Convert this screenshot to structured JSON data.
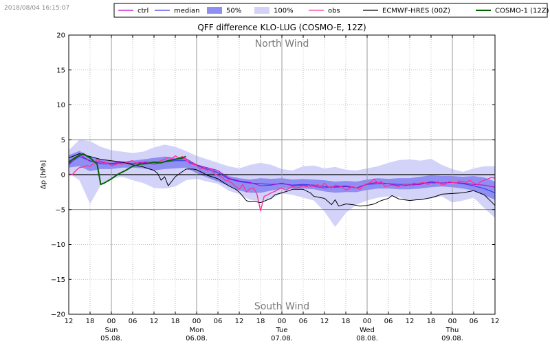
{
  "timestamp": "2018/08/04 16:15:07",
  "chart_data": {
    "type": "line",
    "title": "QFF difference KLO-LUG (COSMO-E, 12Z)",
    "ylabel": "Δp [hPa]",
    "xlabel": "",
    "ylim": [
      -20,
      20
    ],
    "xlim": [
      0,
      120
    ],
    "yticks": [
      -20,
      -15,
      -10,
      -5,
      0,
      5,
      10,
      15,
      20
    ],
    "hour_ticks": [
      {
        "x": 0,
        "label": "12"
      },
      {
        "x": 6,
        "label": "18"
      },
      {
        "x": 12,
        "label": "00"
      },
      {
        "x": 18,
        "label": "06"
      },
      {
        "x": 24,
        "label": "12"
      },
      {
        "x": 30,
        "label": "18"
      },
      {
        "x": 36,
        "label": "00"
      },
      {
        "x": 42,
        "label": "06"
      },
      {
        "x": 48,
        "label": "12"
      },
      {
        "x": 54,
        "label": "18"
      },
      {
        "x": 60,
        "label": "00"
      },
      {
        "x": 66,
        "label": "06"
      },
      {
        "x": 72,
        "label": "12"
      },
      {
        "x": 78,
        "label": "18"
      },
      {
        "x": 84,
        "label": "00"
      },
      {
        "x": 90,
        "label": "06"
      },
      {
        "x": 96,
        "label": "12"
      },
      {
        "x": 102,
        "label": "18"
      },
      {
        "x": 108,
        "label": "00"
      },
      {
        "x": 114,
        "label": "06"
      },
      {
        "x": 120,
        "label": "12"
      }
    ],
    "day_labels": [
      {
        "x": 12,
        "day": "Sun",
        "date": "05.08."
      },
      {
        "x": 36,
        "day": "Mon",
        "date": "06.08."
      },
      {
        "x": 60,
        "day": "Tue",
        "date": "07.08."
      },
      {
        "x": 84,
        "day": "Wed",
        "date": "08.08."
      },
      {
        "x": 108,
        "day": "Thu",
        "date": "09.08."
      }
    ],
    "reference_lines": [
      5,
      0,
      -5
    ],
    "annotations": [
      {
        "text": "North Wind",
        "x": 60,
        "y": 18.8
      },
      {
        "text": "South Wind",
        "x": 60,
        "y": -18.8
      }
    ],
    "legend": [
      {
        "label": "ctrl",
        "kind": "line",
        "color": "#c000c0"
      },
      {
        "label": "median",
        "kind": "line",
        "color": "#3a3af0"
      },
      {
        "label": "50%",
        "kind": "band",
        "color": "#8f8ff3"
      },
      {
        "label": "100%",
        "kind": "band",
        "color": "#d3d3fa"
      },
      {
        "label": "obs",
        "kind": "line",
        "color": "#ff3399"
      },
      {
        "label": "ECMWF-HRES (00Z)",
        "kind": "line",
        "color": "#000000"
      },
      {
        "label": "COSMO-1 (12Z)",
        "kind": "line",
        "color": "#006400"
      }
    ],
    "bands": [
      {
        "name": "100%",
        "color": "#d3d3fa",
        "x": [
          0,
          3,
          6,
          9,
          12,
          15,
          18,
          21,
          24,
          27,
          30,
          33,
          36,
          39,
          42,
          45,
          48,
          51,
          54,
          57,
          60,
          63,
          66,
          69,
          72,
          75,
          78,
          81,
          84,
          87,
          90,
          93,
          96,
          99,
          102,
          105,
          108,
          111,
          114,
          117,
          120
        ],
        "upper": [
          3.5,
          5.0,
          4.8,
          4.0,
          3.5,
          3.3,
          3.1,
          3.3,
          3.9,
          4.3,
          4.0,
          3.4,
          2.7,
          2.2,
          1.7,
          1.2,
          0.9,
          1.4,
          1.7,
          1.4,
          0.8,
          0.6,
          1.2,
          1.3,
          0.9,
          1.1,
          0.7,
          0.6,
          0.9,
          1.2,
          1.7,
          2.1,
          2.2,
          2.0,
          2.3,
          1.4,
          0.8,
          0.4,
          0.9,
          1.2,
          1.2
        ],
        "lower": [
          0.2,
          -0.8,
          -4.2,
          -1.5,
          -0.6,
          -0.3,
          -0.8,
          -1.2,
          -1.9,
          -2.0,
          -1.7,
          -0.8,
          -0.6,
          -1.0,
          -1.3,
          -2.3,
          -2.8,
          -3.6,
          -3.8,
          -3.4,
          -2.7,
          -2.9,
          -3.3,
          -3.7,
          -5.3,
          -7.5,
          -5.5,
          -4.3,
          -3.7,
          -3.3,
          -3.1,
          -3.2,
          -3.8,
          -3.5,
          -3.4,
          -3.1,
          -4.0,
          -3.7,
          -3.3,
          -4.8,
          -6.2
        ]
      },
      {
        "name": "50%",
        "color": "#8f8ff3",
        "x": [
          0,
          3,
          6,
          9,
          12,
          15,
          18,
          21,
          24,
          27,
          30,
          33,
          36,
          39,
          42,
          45,
          48,
          51,
          54,
          57,
          60,
          63,
          66,
          69,
          72,
          75,
          78,
          81,
          84,
          87,
          90,
          93,
          96,
          99,
          102,
          105,
          108,
          111,
          114,
          117,
          120
        ],
        "upper": [
          2.8,
          3.4,
          2.6,
          2.2,
          2.0,
          1.9,
          2.0,
          2.2,
          2.4,
          2.6,
          2.4,
          2.2,
          1.5,
          1.0,
          0.5,
          -0.2,
          -0.5,
          -0.7,
          -0.5,
          -0.6,
          -0.5,
          -0.7,
          -0.6,
          -0.7,
          -0.8,
          -1.0,
          -0.9,
          -1.0,
          -0.7,
          -0.5,
          -0.6,
          -0.5,
          -0.5,
          -0.3,
          -0.1,
          -0.2,
          -0.2,
          -0.3,
          -0.2,
          -0.4,
          -1.0
        ],
        "lower": [
          1.0,
          1.2,
          0.5,
          0.8,
          0.8,
          1.0,
          1.0,
          0.9,
          0.6,
          0.8,
          0.9,
          1.0,
          0.2,
          -0.4,
          -1.0,
          -1.6,
          -2.3,
          -2.6,
          -2.6,
          -2.3,
          -2.0,
          -2.0,
          -2.0,
          -2.1,
          -2.4,
          -2.6,
          -2.5,
          -2.5,
          -2.2,
          -2.0,
          -2.0,
          -2.1,
          -2.1,
          -2.0,
          -1.8,
          -1.7,
          -1.8,
          -2.0,
          -2.3,
          -3.0,
          -3.6
        ]
      }
    ],
    "series": [
      {
        "name": "median",
        "color": "#3a3af0",
        "width": 1.2,
        "x": [
          0,
          3,
          6,
          9,
          12,
          15,
          18,
          21,
          24,
          27,
          30,
          33,
          36,
          39,
          42,
          45,
          48,
          51,
          54,
          57,
          60,
          63,
          66,
          69,
          72,
          75,
          78,
          81,
          84,
          87,
          90,
          93,
          96,
          99,
          102,
          105,
          108,
          111,
          114,
          117,
          120
        ],
        "y": [
          1.6,
          2.6,
          2.0,
          1.6,
          1.5,
          1.7,
          1.6,
          1.7,
          1.6,
          1.8,
          2.0,
          2.0,
          1.3,
          0.8,
          0.3,
          -0.6,
          -1.0,
          -1.2,
          -1.3,
          -1.4,
          -1.3,
          -1.5,
          -1.4,
          -1.5,
          -1.7,
          -1.8,
          -1.7,
          -1.9,
          -1.4,
          -1.3,
          -1.3,
          -1.4,
          -1.4,
          -1.3,
          -1.1,
          -1.2,
          -1.1,
          -1.3,
          -1.6,
          -2.0,
          -2.6
        ]
      },
      {
        "name": "ctrl",
        "color": "#c000c0",
        "width": 1.0,
        "x": [
          0,
          3,
          6,
          9,
          12,
          15,
          18,
          21,
          24,
          27,
          30,
          33,
          36,
          39,
          42,
          45,
          48,
          51,
          54,
          57,
          60,
          63,
          66,
          69,
          72,
          75,
          78,
          81,
          84,
          87,
          90,
          93,
          96,
          99,
          102,
          105,
          108,
          111,
          114,
          117,
          120
        ],
        "y": [
          1.4,
          2.9,
          1.9,
          1.8,
          1.6,
          1.8,
          1.6,
          1.8,
          1.5,
          1.8,
          2.2,
          2.3,
          1.4,
          1.0,
          0.6,
          -0.5,
          -0.9,
          -1.1,
          -1.6,
          -1.5,
          -1.2,
          -1.6,
          -1.5,
          -1.7,
          -1.9,
          -1.7,
          -1.6,
          -1.9,
          -1.3,
          -1.1,
          -1.3,
          -1.6,
          -1.5,
          -1.4,
          -1.0,
          -1.2,
          -1.1,
          -1.2,
          -1.4,
          -1.5,
          -1.8
        ]
      },
      {
        "name": "obs",
        "color": "#ff3399",
        "width": 1.4,
        "x": [
          0,
          1,
          2,
          3,
          4,
          5,
          6,
          7,
          8,
          9,
          10,
          11,
          12,
          13,
          14,
          15,
          16,
          17,
          18,
          19,
          20,
          21,
          22,
          23,
          24,
          25,
          26,
          27,
          28,
          29,
          30,
          31,
          32,
          33,
          34,
          35,
          36,
          37,
          38,
          39,
          40,
          41,
          42,
          43,
          44,
          45,
          46,
          47,
          48,
          49,
          50,
          51,
          52,
          53,
          54,
          55,
          56,
          57,
          58,
          59,
          60,
          61,
          62,
          63,
          64,
          65,
          66,
          67,
          68,
          69,
          70,
          71,
          72,
          73,
          74,
          75,
          76,
          77,
          78,
          79,
          80,
          81,
          82,
          83,
          84,
          85,
          86,
          87,
          88,
          89,
          90,
          91,
          92,
          93,
          94,
          95,
          96,
          97,
          98,
          99,
          100,
          101,
          102,
          103,
          104,
          105,
          106,
          107,
          108,
          109,
          110,
          111,
          112,
          113,
          114,
          115,
          116,
          117,
          118,
          119,
          120
        ],
        "y": [
          0.1,
          0.0,
          0.6,
          1.0,
          1.1,
          1.3,
          1.2,
          1.6,
          2.2,
          1.9,
          1.8,
          1.6,
          1.3,
          1.4,
          1.6,
          1.5,
          1.7,
          1.9,
          2.0,
          1.7,
          1.5,
          1.8,
          1.9,
          1.7,
          1.6,
          1.8,
          2.0,
          2.2,
          2.5,
          2.3,
          2.7,
          2.4,
          2.6,
          2.1,
          1.6,
          1.5,
          1.3,
          0.8,
          0.9,
          0.6,
          0.8,
          0.1,
          -0.1,
          -0.3,
          -0.8,
          -0.9,
          -1.2,
          -1.7,
          -2.1,
          -1.4,
          -2.5,
          -2.0,
          -1.9,
          -2.8,
          -5.2,
          -3.1,
          -2.9,
          -2.6,
          -2.4,
          -2.1,
          -1.9,
          -2.2,
          -2.0,
          -1.7,
          -1.9,
          -1.8,
          -1.6,
          -1.7,
          -1.5,
          -1.7,
          -1.4,
          -1.8,
          -1.2,
          -1.7,
          -1.9,
          -1.5,
          -1.6,
          -1.8,
          -2.2,
          -2.0,
          -1.7,
          -1.9,
          -2.1,
          -1.5,
          -1.3,
          -1.1,
          -0.6,
          -1.2,
          -1.0,
          -1.7,
          -1.6,
          -1.5,
          -1.6,
          -1.7,
          -1.5,
          -1.3,
          -1.6,
          -1.2,
          -1.3,
          -1.2,
          -1.1,
          -1.4,
          -1.2,
          -1.3,
          -1.0,
          -1.5,
          -1.4,
          -1.0,
          -1.1,
          -1.2,
          -0.9,
          -1.0,
          -1.1,
          -0.8,
          -1.2,
          -1.4,
          -1.0,
          -0.8,
          -0.6,
          -0.4,
          -0.5
        ]
      },
      {
        "name": "ECMWF-HRES (00Z)",
        "color": "#000000",
        "width": 1.0,
        "x": [
          0,
          3,
          6,
          9,
          12,
          15,
          18,
          21,
          24,
          25,
          26,
          27,
          28,
          30,
          33,
          35,
          36,
          38,
          39,
          41,
          42,
          45,
          47,
          48,
          50,
          51,
          52,
          54,
          56,
          57,
          58,
          60,
          62,
          63,
          66,
          68,
          69,
          72,
          74,
          75,
          76,
          78,
          80,
          82,
          84,
          86,
          88,
          90,
          91,
          93,
          96,
          98,
          99,
          102,
          104,
          105,
          108,
          111,
          114,
          117,
          120
        ],
        "y": [
          2.4,
          3.0,
          2.6,
          2.2,
          2.0,
          1.8,
          1.4,
          1.1,
          0.6,
          0.2,
          -0.8,
          -0.3,
          -1.6,
          -0.3,
          0.8,
          0.8,
          0.7,
          0.2,
          -0.1,
          -0.4,
          -0.6,
          -1.6,
          -2.1,
          -2.5,
          -3.7,
          -3.9,
          -3.8,
          -4.0,
          -3.6,
          -3.4,
          -2.9,
          -2.6,
          -2.3,
          -2.1,
          -2.1,
          -2.6,
          -3.1,
          -3.4,
          -4.3,
          -3.6,
          -4.5,
          -4.2,
          -4.3,
          -4.5,
          -4.4,
          -4.2,
          -3.7,
          -3.4,
          -3.0,
          -3.5,
          -3.7,
          -3.6,
          -3.6,
          -3.3,
          -3.0,
          -2.8,
          -2.7,
          -2.6,
          -2.3,
          -2.9,
          -4.4
        ]
      },
      {
        "name": "COSMO-1 (12Z)",
        "color": "#006400",
        "width": 2.0,
        "x": [
          0,
          2,
          4,
          6,
          8,
          9,
          10,
          12,
          14,
          16,
          18,
          20,
          22,
          24,
          26,
          28,
          30,
          32,
          33
        ],
        "y": [
          1.8,
          2.5,
          3.0,
          2.4,
          1.5,
          -1.4,
          -1.2,
          -0.6,
          0.1,
          0.6,
          1.2,
          1.5,
          1.6,
          1.8,
          1.7,
          2.0,
          2.2,
          2.4,
          2.6
        ]
      }
    ]
  }
}
